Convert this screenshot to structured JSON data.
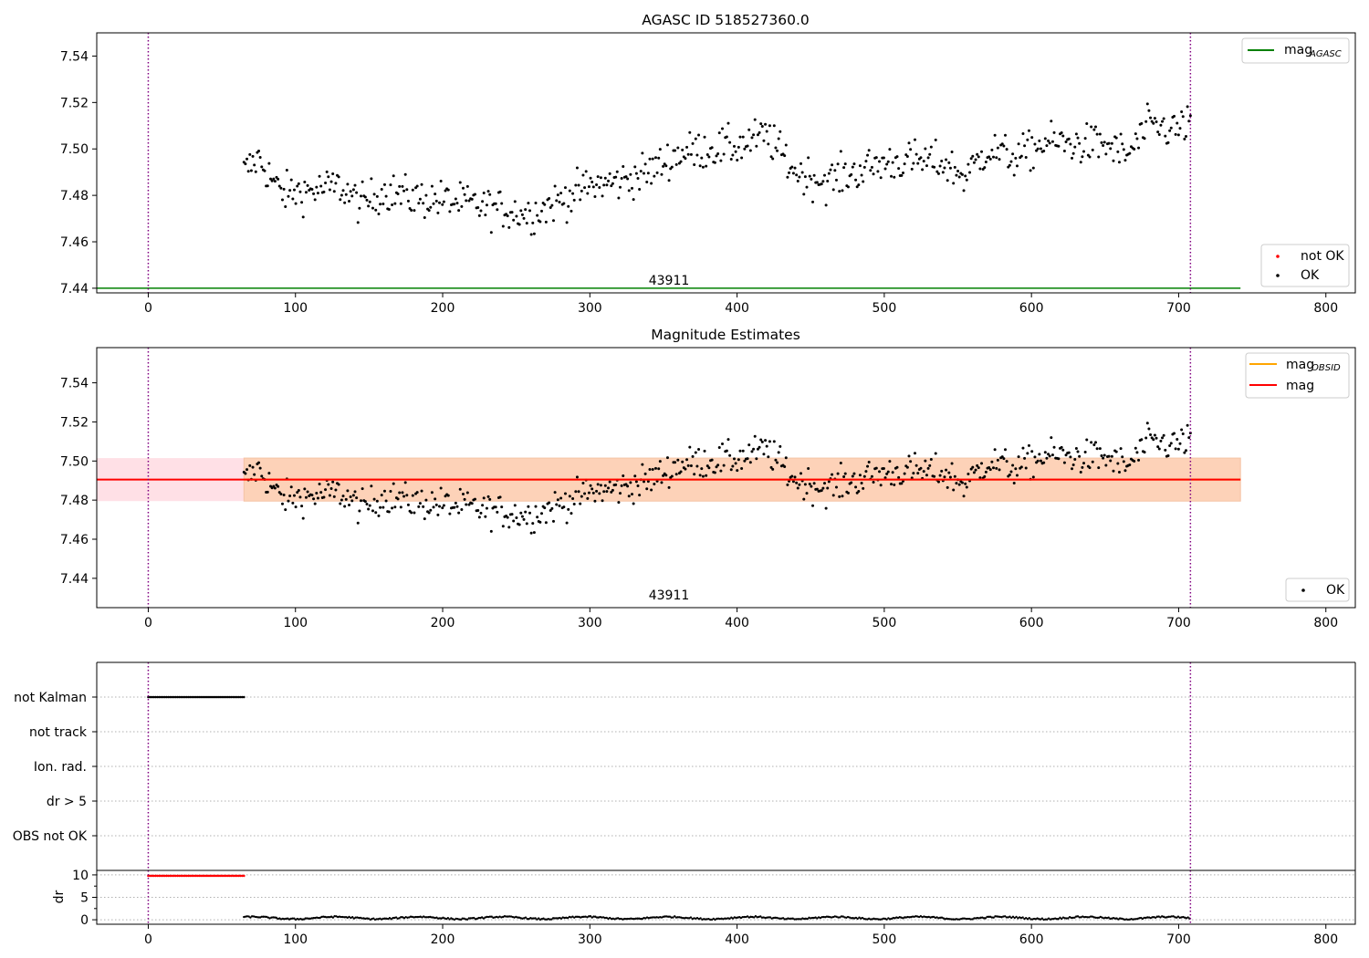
{
  "chart_data": [
    {
      "type": "scatter",
      "title": "AGASC ID 518527360.0",
      "xlim": [
        -35,
        820
      ],
      "ylim": [
        7.438,
        7.55
      ],
      "xticks": [
        0,
        100,
        200,
        300,
        400,
        500,
        600,
        700,
        800
      ],
      "yticks": [
        7.44,
        7.46,
        7.48,
        7.5,
        7.52,
        7.54
      ],
      "ytick_labels": [
        "7.44",
        "7.46",
        "7.48",
        "7.50",
        "7.52",
        "7.54"
      ],
      "obsid_label": {
        "text": "43911",
        "x": 354,
        "y": 7.44
      },
      "vlines": [
        {
          "x": 0,
          "color": "#800080",
          "style": "dotted"
        },
        {
          "x": 708,
          "color": "#800080",
          "style": "dotted"
        }
      ],
      "agasc_mag": {
        "value": 7.44,
        "x_range": [
          -35,
          742
        ],
        "color": "#008000"
      },
      "legend_top_right": [
        {
          "label": "mag",
          "subscript": "AGASC",
          "color": "#008000",
          "marker": "line"
        }
      ],
      "legend_bottom_right": [
        {
          "label": "not OK",
          "color": "#ff0000",
          "marker": "dot"
        },
        {
          "label": "OK",
          "color": "#000000",
          "marker": "dot"
        }
      ],
      "series": [
        {
          "name": "OK",
          "color": "#000000",
          "x_range": [
            65,
            708
          ],
          "count": 640,
          "trend": [
            [
              65,
              7.49
            ],
            [
              75,
              7.496
            ],
            [
              90,
              7.481
            ],
            [
              110,
              7.482
            ],
            [
              130,
              7.484
            ],
            [
              145,
              7.476
            ],
            [
              160,
              7.482
            ],
            [
              180,
              7.479
            ],
            [
              200,
              7.478
            ],
            [
              220,
              7.476
            ],
            [
              240,
              7.474
            ],
            [
              260,
              7.472
            ],
            [
              280,
              7.478
            ],
            [
              300,
              7.484
            ],
            [
              320,
              7.486
            ],
            [
              340,
              7.49
            ],
            [
              360,
              7.498
            ],
            [
              380,
              7.5
            ],
            [
              400,
              7.501
            ],
            [
              420,
              7.506
            ],
            [
              440,
              7.49
            ],
            [
              460,
              7.486
            ],
            [
              480,
              7.49
            ],
            [
              500,
              7.494
            ],
            [
              520,
              7.495
            ],
            [
              540,
              7.494
            ],
            [
              555,
              7.488
            ],
            [
              570,
              7.5
            ],
            [
              590,
              7.496
            ],
            [
              610,
              7.503
            ],
            [
              630,
              7.502
            ],
            [
              650,
              7.502
            ],
            [
              665,
              7.497
            ],
            [
              680,
              7.51
            ],
            [
              700,
              7.508
            ],
            [
              708,
              7.513
            ]
          ]
        }
      ]
    },
    {
      "type": "scatter",
      "title": "Magnitude Estimates",
      "xlim": [
        -35,
        820
      ],
      "ylim": [
        7.425,
        7.558
      ],
      "xticks": [
        0,
        100,
        200,
        300,
        400,
        500,
        600,
        700,
        800
      ],
      "yticks": [
        7.44,
        7.46,
        7.48,
        7.5,
        7.52,
        7.54
      ],
      "ytick_labels": [
        "7.44",
        "7.46",
        "7.48",
        "7.50",
        "7.52",
        "7.54"
      ],
      "obsid_label": {
        "text": "43911",
        "x": 354,
        "y": 7.425
      },
      "vlines": [
        {
          "x": 0,
          "color": "#800080",
          "style": "dotted"
        },
        {
          "x": 708,
          "color": "#800080",
          "style": "dotted"
        }
      ],
      "mag": {
        "value": 7.4905,
        "band": [
          7.4795,
          7.5015
        ],
        "x_range": [
          -35,
          742
        ],
        "color": "#ff0000",
        "band_color": "#ffe0e6"
      },
      "mag_obsid": {
        "value": 7.4905,
        "band": [
          7.4795,
          7.5015
        ],
        "x_range": [
          65,
          742
        ],
        "color": "#ffa500",
        "band_color": "#fdd2b8"
      },
      "legend_top_right": [
        {
          "label": "mag",
          "subscript": "OBSID",
          "color": "#ffa500",
          "marker": "line"
        },
        {
          "label": "mag",
          "color": "#ff0000",
          "marker": "line"
        }
      ],
      "legend_bottom_right": [
        {
          "label": "OK",
          "color": "#000000",
          "marker": "dot"
        }
      ],
      "series": [
        {
          "name": "OK",
          "color": "#000000",
          "same_as_panel": 0
        }
      ]
    },
    {
      "type": "scatter",
      "title": "",
      "xlim": [
        -35,
        820
      ],
      "xticks": [
        0,
        100,
        200,
        300,
        400,
        500,
        600,
        700,
        800
      ],
      "flag_rows": [
        "not Kalman",
        "not track",
        "Ion. rad.",
        "dr > 5",
        "OBS not OK"
      ],
      "flag_points": [
        {
          "row": "not Kalman",
          "x_range": [
            0,
            65
          ]
        }
      ],
      "vlines": [
        {
          "x": 0,
          "color": "#800080",
          "style": "dotted"
        },
        {
          "x": 708,
          "color": "#800080",
          "style": "dotted"
        }
      ]
    },
    {
      "type": "scatter",
      "title": "",
      "ylabel": "dr",
      "xlim": [
        -35,
        820
      ],
      "ylim": [
        -1,
        11
      ],
      "xticks": [
        0,
        100,
        200,
        300,
        400,
        500,
        600,
        700,
        800
      ],
      "yticks": [
        0,
        5,
        10
      ],
      "ytick_labels": [
        "0",
        "5",
        "10"
      ],
      "vlines": [
        {
          "x": 0,
          "color": "#800080",
          "style": "dotted"
        },
        {
          "x": 708,
          "color": "#800080",
          "style": "dotted"
        }
      ],
      "series": [
        {
          "name": "not OK",
          "color": "#ff0000",
          "x_range": [
            0,
            65
          ],
          "y": 9.8
        },
        {
          "name": "OK",
          "color": "#000000",
          "x_range": [
            65,
            708
          ],
          "y_mean": 0.4
        }
      ]
    }
  ]
}
